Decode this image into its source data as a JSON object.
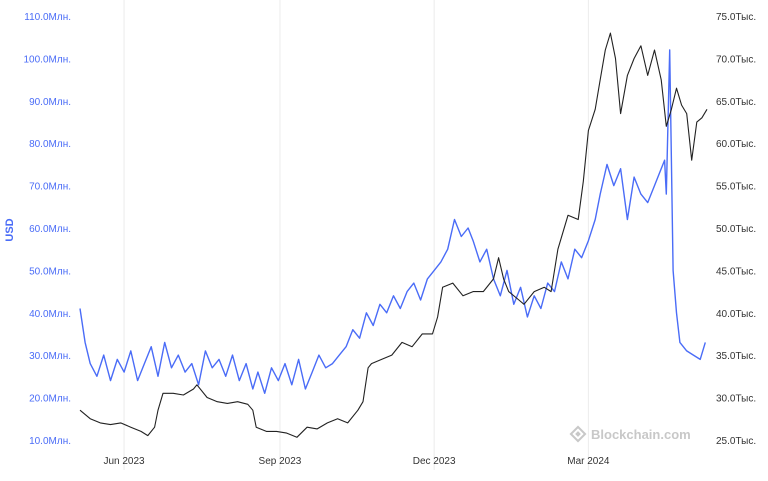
{
  "chart_data": {
    "type": "line",
    "ylabel_left": "USD",
    "y_left_ticks": [
      "10.0Млн.",
      "20.0Млн.",
      "30.0Млн.",
      "40.0Млн.",
      "50.0Млн.",
      "60.0Млн.",
      "70.0Млн.",
      "80.0Млн.",
      "90.0Млн.",
      "100.0Млн.",
      "110.0Млн."
    ],
    "y_left_values": [
      10,
      20,
      30,
      40,
      50,
      60,
      70,
      80,
      90,
      100,
      110
    ],
    "y_left_range": [
      9.5,
      110.5
    ],
    "y_right_ticks": [
      "25.0Тыс.",
      "30.0Тыс.",
      "35.0Тыс.",
      "40.0Тыс.",
      "45.0Тыс.",
      "50.0Тыс.",
      "55.0Тыс.",
      "60.0Тыс.",
      "65.0Тыс.",
      "70.0Тыс.",
      "75.0Тыс."
    ],
    "y_right_values": [
      25,
      30,
      35,
      40,
      45,
      50,
      55,
      60,
      65,
      70,
      75
    ],
    "y_right_range": [
      24.75,
      75.25
    ],
    "x_ticks": [
      "Jun 2023",
      "Sep 2023",
      "Dec 2023",
      "Mar 2024"
    ],
    "x_tick_dates": [
      "2023-06-01",
      "2023-09-01",
      "2023-12-01",
      "2024-03-01"
    ],
    "x_range": [
      "2023-05-06",
      "2024-05-10"
    ],
    "grid": "vertical",
    "watermark": "Blockchain.com",
    "series": [
      {
        "axis": "left",
        "color": "#4a6cf7",
        "x": [
          "2023-05-06",
          "2023-05-09",
          "2023-05-12",
          "2023-05-16",
          "2023-05-20",
          "2023-05-24",
          "2023-05-28",
          "2023-06-01",
          "2023-06-05",
          "2023-06-09",
          "2023-06-13",
          "2023-06-17",
          "2023-06-21",
          "2023-06-25",
          "2023-06-29",
          "2023-07-03",
          "2023-07-07",
          "2023-07-11",
          "2023-07-15",
          "2023-07-19",
          "2023-07-23",
          "2023-07-27",
          "2023-07-31",
          "2023-08-04",
          "2023-08-08",
          "2023-08-12",
          "2023-08-16",
          "2023-08-19",
          "2023-08-23",
          "2023-08-27",
          "2023-08-31",
          "2023-09-04",
          "2023-09-08",
          "2023-09-12",
          "2023-09-16",
          "2023-09-20",
          "2023-09-24",
          "2023-09-28",
          "2023-10-02",
          "2023-10-06",
          "2023-10-10",
          "2023-10-14",
          "2023-10-18",
          "2023-10-22",
          "2023-10-26",
          "2023-10-30",
          "2023-11-03",
          "2023-11-07",
          "2023-11-11",
          "2023-11-15",
          "2023-11-19",
          "2023-11-23",
          "2023-11-27",
          "2023-12-01",
          "2023-12-05",
          "2023-12-09",
          "2023-12-13",
          "2023-12-17",
          "2023-12-21",
          "2023-12-24",
          "2023-12-28",
          "2024-01-01",
          "2024-01-05",
          "2024-01-09",
          "2024-01-13",
          "2024-01-17",
          "2024-01-21",
          "2024-01-25",
          "2024-01-29",
          "2024-02-02",
          "2024-02-06",
          "2024-02-10",
          "2024-02-14",
          "2024-02-18",
          "2024-02-22",
          "2024-02-26",
          "2024-03-01",
          "2024-03-05",
          "2024-03-08",
          "2024-03-12",
          "2024-03-16",
          "2024-03-20",
          "2024-03-24",
          "2024-03-28",
          "2024-04-01",
          "2024-04-05",
          "2024-04-09",
          "2024-04-13",
          "2024-04-15",
          "2024-04-16",
          "2024-04-18",
          "2024-04-20",
          "2024-04-22",
          "2024-04-24",
          "2024-04-28",
          "2024-05-02",
          "2024-05-06",
          "2024-05-09"
        ],
        "values": [
          41,
          33,
          28,
          25,
          30,
          24,
          29,
          26,
          31,
          24,
          28,
          32,
          25,
          33,
          27,
          30,
          26,
          28,
          23,
          31,
          27,
          29,
          25,
          30,
          24,
          28,
          22,
          26,
          21,
          27,
          24,
          28,
          23,
          29,
          22,
          26,
          30,
          27,
          28,
          30,
          32,
          36,
          34,
          40,
          37,
          42,
          40,
          44,
          41,
          45,
          47,
          43,
          48,
          50,
          52,
          55,
          62,
          58,
          60,
          57,
          52,
          55,
          48,
          44,
          50,
          42,
          46,
          39,
          44,
          41,
          47,
          45,
          52,
          48,
          55,
          53,
          57,
          62,
          68,
          75,
          70,
          74,
          62,
          72,
          68,
          66,
          70,
          74,
          76,
          68,
          102,
          50,
          40,
          33,
          31,
          30,
          29,
          33
        ]
      },
      {
        "axis": "right",
        "color": "#222222",
        "x": [
          "2023-05-06",
          "2023-05-12",
          "2023-05-18",
          "2023-05-24",
          "2023-05-30",
          "2023-06-05",
          "2023-06-11",
          "2023-06-15",
          "2023-06-19",
          "2023-06-21",
          "2023-06-24",
          "2023-06-30",
          "2023-07-06",
          "2023-07-12",
          "2023-07-14",
          "2023-07-20",
          "2023-07-26",
          "2023-08-01",
          "2023-08-07",
          "2023-08-13",
          "2023-08-16",
          "2023-08-18",
          "2023-08-24",
          "2023-08-30",
          "2023-09-05",
          "2023-09-11",
          "2023-09-17",
          "2023-09-23",
          "2023-09-29",
          "2023-10-05",
          "2023-10-11",
          "2023-10-17",
          "2023-10-20",
          "2023-10-23",
          "2023-10-25",
          "2023-10-31",
          "2023-11-06",
          "2023-11-12",
          "2023-11-18",
          "2023-11-24",
          "2023-11-30",
          "2023-12-03",
          "2023-12-06",
          "2023-12-12",
          "2023-12-18",
          "2023-12-24",
          "2023-12-30",
          "2024-01-05",
          "2024-01-08",
          "2024-01-11",
          "2024-01-14",
          "2024-01-20",
          "2024-01-23",
          "2024-01-29",
          "2024-02-04",
          "2024-02-08",
          "2024-02-12",
          "2024-02-18",
          "2024-02-24",
          "2024-02-27",
          "2024-03-01",
          "2024-03-05",
          "2024-03-08",
          "2024-03-11",
          "2024-03-14",
          "2024-03-17",
          "2024-03-20",
          "2024-03-24",
          "2024-03-28",
          "2024-04-01",
          "2024-04-05",
          "2024-04-09",
          "2024-04-13",
          "2024-04-16",
          "2024-04-19",
          "2024-04-22",
          "2024-04-25",
          "2024-04-28",
          "2024-05-01",
          "2024-05-04",
          "2024-05-07",
          "2024-05-10"
        ],
        "values": [
          28.5,
          27.5,
          27.0,
          26.8,
          27.0,
          26.5,
          26.0,
          25.5,
          26.5,
          28.5,
          30.5,
          30.5,
          30.3,
          31.0,
          31.5,
          30.0,
          29.5,
          29.3,
          29.5,
          29.2,
          28.5,
          26.5,
          26.0,
          26.0,
          25.8,
          25.3,
          26.5,
          26.3,
          27.0,
          27.5,
          27.0,
          28.5,
          29.5,
          33.5,
          34.0,
          34.5,
          35.0,
          36.5,
          36.0,
          37.5,
          37.5,
          39.5,
          43.0,
          43.5,
          42.0,
          42.5,
          42.5,
          44.0,
          46.5,
          44.0,
          42.5,
          41.5,
          41.0,
          42.5,
          43.0,
          42.5,
          47.5,
          51.5,
          51.0,
          55.5,
          61.5,
          64.0,
          67.5,
          71.0,
          73.0,
          70.0,
          63.5,
          68.0,
          70.0,
          71.5,
          68.0,
          71.0,
          67.5,
          62.0,
          64.0,
          66.5,
          64.5,
          63.5,
          58.0,
          62.5,
          63.0,
          64.0
        ]
      }
    ]
  }
}
